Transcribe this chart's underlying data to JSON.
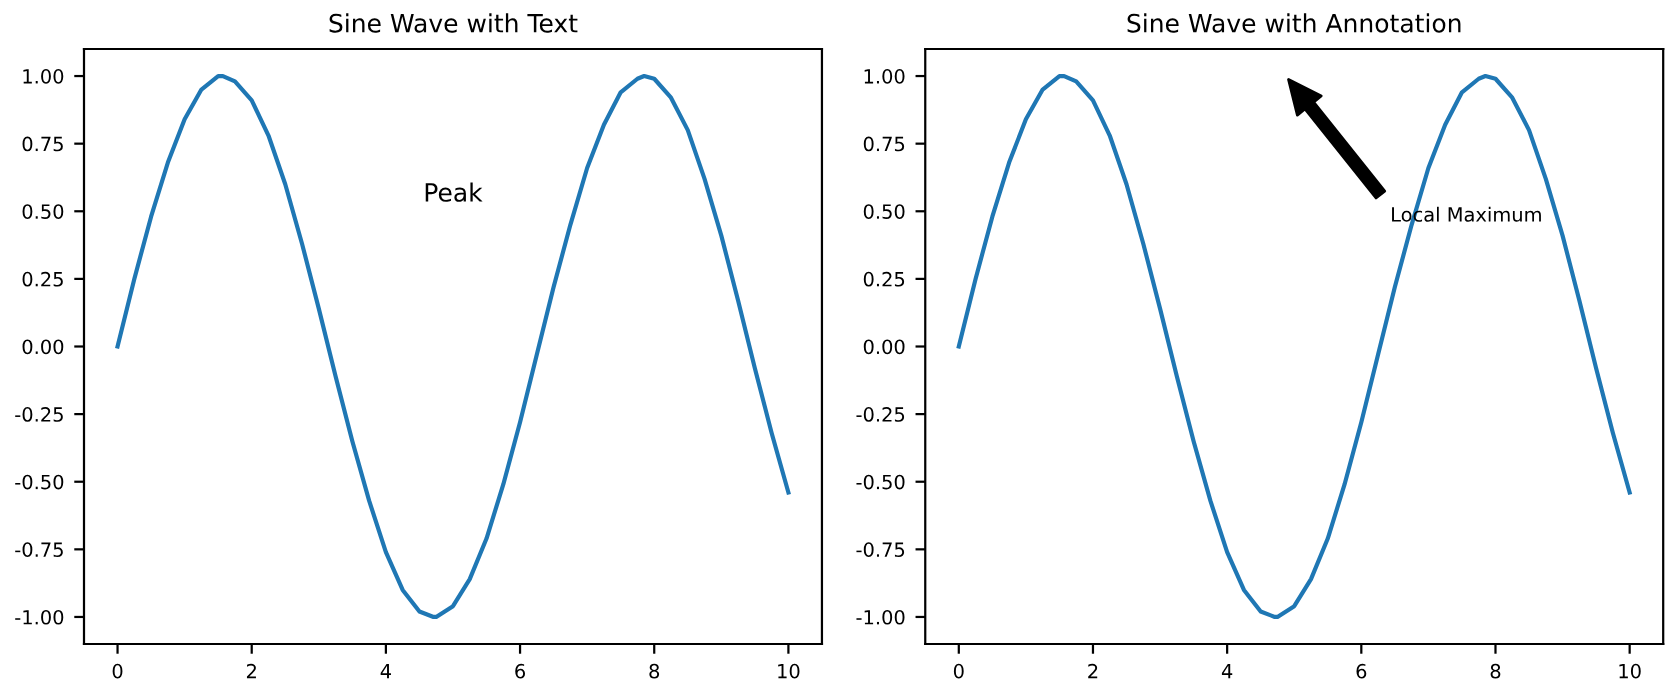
{
  "chart_data": [
    {
      "type": "line",
      "title": "Sine Wave with Text",
      "xlim": [
        -0.5,
        10.5
      ],
      "ylim": [
        -1.1,
        1.1
      ],
      "xticks": [
        0,
        2,
        4,
        6,
        8,
        10
      ],
      "yticks": [
        {
          "value": -1,
          "label": "-1.00"
        },
        {
          "value": -0.75,
          "label": "-0.75"
        },
        {
          "value": -0.5,
          "label": "-0.50"
        },
        {
          "value": -0.25,
          "label": "-0.25"
        },
        {
          "value": 0,
          "label": "0.00"
        },
        {
          "value": 0.25,
          "label": "0.25"
        },
        {
          "value": 0.5,
          "label": "0.50"
        },
        {
          "value": 0.75,
          "label": "0.75"
        },
        {
          "value": 1,
          "label": "1.00"
        }
      ],
      "annotations": [
        "Peak"
      ],
      "series": [
        {
          "color": "#1f77b4",
          "x": [
            0,
            0.25,
            0.5,
            0.75,
            1,
            1.25,
            1.5,
            1.57,
            1.75,
            2,
            2.25,
            2.5,
            2.75,
            3,
            3.25,
            3.5,
            3.75,
            4,
            4.25,
            4.5,
            4.71,
            4.75,
            5,
            5.25,
            5.5,
            5.75,
            6,
            6.25,
            6.5,
            6.75,
            7,
            7.25,
            7.5,
            7.75,
            7.85,
            8,
            8.25,
            8.5,
            8.75,
            9,
            9.25,
            9.5,
            9.75,
            10
          ],
          "values": [
            0,
            0.25,
            0.48,
            0.68,
            0.84,
            0.95,
            1.0,
            1.0,
            0.98,
            0.91,
            0.78,
            0.6,
            0.38,
            0.14,
            -0.11,
            -0.35,
            -0.57,
            -0.76,
            -0.9,
            -0.98,
            -1.0,
            -1.0,
            -0.96,
            -0.86,
            -0.71,
            -0.51,
            -0.28,
            -0.03,
            0.22,
            0.45,
            0.66,
            0.82,
            0.94,
            0.99,
            1.0,
            0.99,
            0.92,
            0.8,
            0.62,
            0.41,
            0.17,
            -0.08,
            -0.32,
            -0.54
          ]
        }
      ]
    },
    {
      "type": "line",
      "title": "Sine Wave with Annotation",
      "xlim": [
        -0.5,
        10.5
      ],
      "ylim": [
        -1.1,
        1.1
      ],
      "xticks": [
        0,
        2,
        4,
        6,
        8,
        10
      ],
      "yticks": [
        {
          "value": -1,
          "label": "-1.00"
        },
        {
          "value": -0.75,
          "label": "-0.75"
        },
        {
          "value": -0.5,
          "label": "-0.50"
        },
        {
          "value": -0.25,
          "label": "-0.25"
        },
        {
          "value": 0,
          "label": "0.00"
        },
        {
          "value": 0.25,
          "label": "0.25"
        },
        {
          "value": 0.5,
          "label": "0.50"
        },
        {
          "value": 0.75,
          "label": "0.75"
        },
        {
          "value": 1,
          "label": "1.00"
        }
      ],
      "annotations": [
        "Local Maximum"
      ],
      "series": [
        {
          "color": "#1f77b4",
          "x": [
            0,
            0.25,
            0.5,
            0.75,
            1,
            1.25,
            1.5,
            1.57,
            1.75,
            2,
            2.25,
            2.5,
            2.75,
            3,
            3.25,
            3.5,
            3.75,
            4,
            4.25,
            4.5,
            4.71,
            4.75,
            5,
            5.25,
            5.5,
            5.75,
            6,
            6.25,
            6.5,
            6.75,
            7,
            7.25,
            7.5,
            7.75,
            7.85,
            8,
            8.25,
            8.5,
            8.75,
            9,
            9.25,
            9.5,
            9.75,
            10
          ],
          "values": [
            0,
            0.25,
            0.48,
            0.68,
            0.84,
            0.95,
            1.0,
            1.0,
            0.98,
            0.91,
            0.78,
            0.6,
            0.38,
            0.14,
            -0.11,
            -0.35,
            -0.57,
            -0.76,
            -0.9,
            -0.98,
            -1.0,
            -1.0,
            -0.96,
            -0.86,
            -0.71,
            -0.51,
            -0.28,
            -0.03,
            0.22,
            0.45,
            0.66,
            0.82,
            0.94,
            0.99,
            1.0,
            0.99,
            0.92,
            0.8,
            0.62,
            0.41,
            0.17,
            -0.08,
            -0.32,
            -0.54
          ]
        }
      ]
    }
  ]
}
